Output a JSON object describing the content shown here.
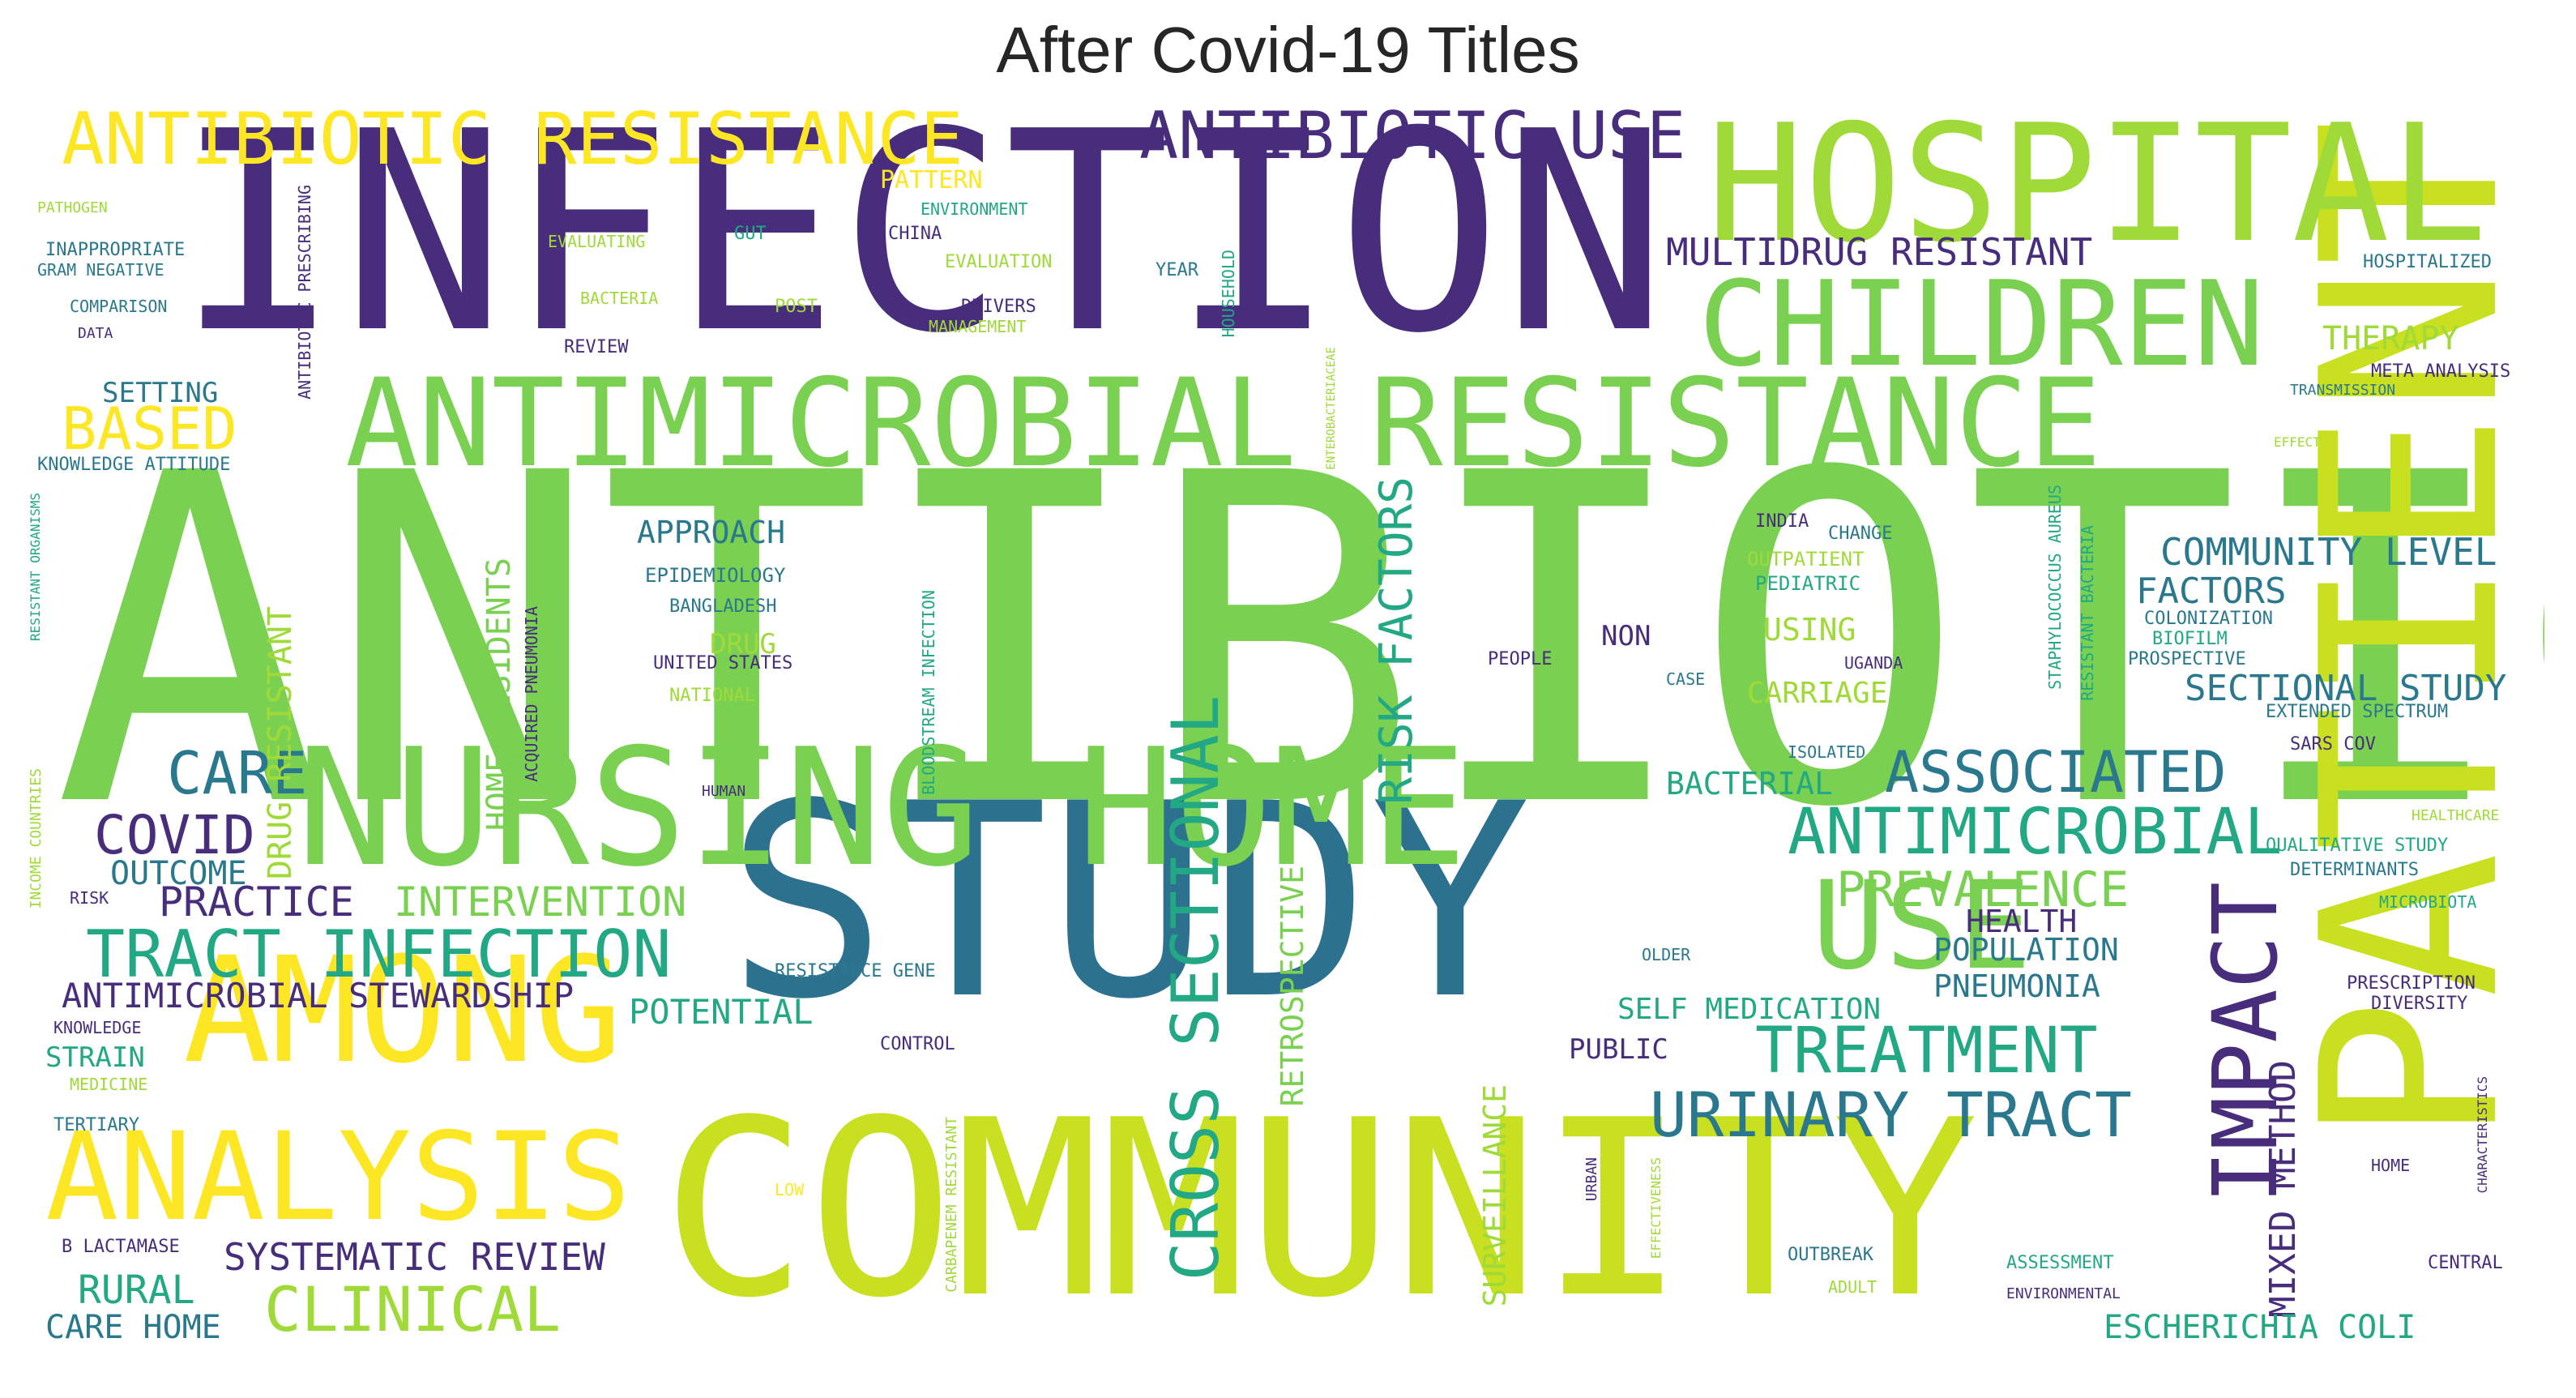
{
  "title": "After Covid-19 Titles",
  "words": [
    "ANTIBIOTIC",
    "INFECTION",
    "COMMUNITY",
    "STUDY",
    "PATIENT",
    "HOSPITAL",
    "NURSING HOME",
    "ANTIMICROBIAL RESISTANCE",
    "CHILDREN",
    "ANTIBIOTIC RESISTANCE",
    "AMONG",
    "ANALYSIS",
    "USE",
    "IMPACT",
    "ANTIBIOTIC USE",
    "CROSS SECTIONAL",
    "ANTIMICROBIAL",
    "TRACT INFECTION",
    "URINARY TRACT",
    "TREATMENT",
    "ASSOCIATED",
    "CLINICAL",
    "PREVALENCE",
    "CARE",
    "COVID",
    "BASED",
    "MULTIDRUG RESISTANT",
    "RISK FACTORS",
    "HOME RESIDENTS",
    "DRUG RESISTANT",
    "MIXED METHOD",
    "SYSTEMATIC REVIEW",
    "ANTIMICROBIAL STEWARDSHIP",
    "COMMUNITY LEVEL",
    "SECTIONAL STUDY",
    "RETROSPECTIVE",
    "SURVEILLANCE",
    "PRACTICE",
    "INTERVENTION",
    "OUTCOME",
    "RURAL",
    "CARE HOME",
    "POTENTIAL",
    "FACTORS",
    "THERAPY",
    "HEALTH",
    "POPULATION",
    "PNEUMONIA",
    "SELF MEDICATION",
    "ESCHERICHIA COLI",
    "APPROACH",
    "CARRIAGE",
    "BACTERIAL",
    "USING",
    "DRUG",
    "STRAIN",
    "PUBLIC",
    "NON",
    "SETTING",
    "PATTERN",
    "EPIDEMIOLOGY",
    "BANGLADESH",
    "UNITED STATES",
    "NATIONAL",
    "RESISTANCE GENE",
    "CONTROL",
    "OUTPATIENT",
    "PEDIATRIC",
    "INDIA",
    "CHANGE",
    "COLONIZATION",
    "BIOFILM",
    "PROSPECTIVE",
    "EXTENDED SPECTRUM",
    "SARS COV",
    "QUALITATIVE STUDY",
    "DETERMINANTS",
    "MICROBIOTA",
    "PRESCRIPTION",
    "DIVERSITY",
    "HOSPITALIZED",
    "META ANALYSIS",
    "TRANSMISSION",
    "KNOWLEDGE ATTITUDE",
    "KNOWLEDGE",
    "MEDICINE",
    "TERTIARY",
    "B LACTAMASE",
    "INAPPROPRIATE",
    "GRAM NEGATIVE",
    "COMPARISON",
    "DATA",
    "PATHOGEN",
    "REVIEW",
    "BACTERIA",
    "DRIVERS",
    "MANAGEMENT",
    "ENVIRONMENT",
    "EVALUATING",
    "GUT",
    "CHINA",
    "EVALUATION",
    "YEAR",
    "POST",
    "HOUSEHOLD",
    "ANTIBIOTIC PRESCRIBING",
    "ACQUIRED PNEUMONIA",
    "BLOODSTREAM INFECTION",
    "STAPHYLOCOCCUS AUREUS",
    "RESISTANT BACTERIA",
    "UGANDA",
    "CASE",
    "ISOLATED",
    "OLDER",
    "OUTBREAK",
    "ADULT",
    "ASSESSMENT",
    "ENVIRONMENTAL",
    "CENTRAL",
    "HOME",
    "HEALTHCARE",
    "PEOPLE",
    "HUMAN",
    "URBAN",
    "CARBAPENEM RESISTANT",
    "EFFECTIVENESS",
    "LOW",
    "RESISTANT ORGANISMS",
    "INCOME COUNTRIES",
    "CHARACTERISTICS",
    "RISK",
    "ENTEROBACTERIACEAE",
    "EFFECT"
  ]
}
